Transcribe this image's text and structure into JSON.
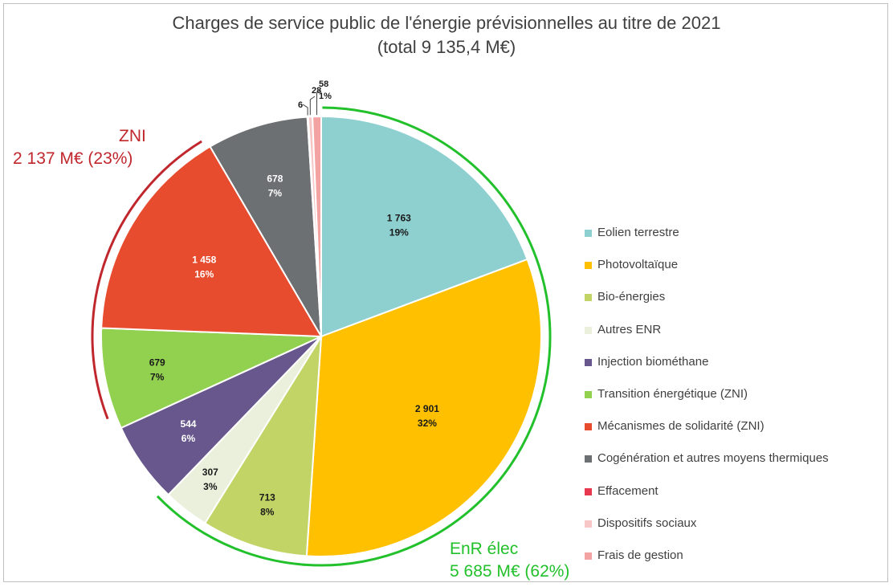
{
  "chart_data": {
    "type": "pie",
    "title": "Charges de service public de l'énergie prévisionnelles au titre de 2021",
    "subtitle": "(total 9 135,4 M€)",
    "slices": [
      {
        "label": "Eolien terrestre",
        "value": 1763,
        "value_label": "1 763",
        "pct_label": "19%",
        "color": "#8ecfd0"
      },
      {
        "label": "Photovoltaïque",
        "value": 2901,
        "value_label": "2 901",
        "pct_label": "32%",
        "color": "#ffc000"
      },
      {
        "label": "Bio-énergies",
        "value": 713,
        "value_label": "713",
        "pct_label": "8%",
        "color": "#c2d466"
      },
      {
        "label": "Autres ENR",
        "value": 307,
        "value_label": "307",
        "pct_label": "3%",
        "color": "#eaf0dc"
      },
      {
        "label": "Injection biométhane",
        "value": 544,
        "value_label": "544",
        "pct_label": "6%",
        "color": "#67578d"
      },
      {
        "label": "Transition énergétique (ZNI)",
        "value": 679,
        "value_label": "679",
        "pct_label": "7%",
        "color": "#92d050"
      },
      {
        "label": "Mécanismes de solidarité (ZNI)",
        "value": 1458,
        "value_label": "1 458",
        "pct_label": "16%",
        "color": "#e84c2e"
      },
      {
        "label": "Cogénération et autres moyens thermiques",
        "value": 678,
        "value_label": "678",
        "pct_label": "7%",
        "color": "#6d7073"
      },
      {
        "label": "Effacement",
        "value": 6,
        "value_label": "",
        "pct_label": "",
        "color": "#e8384f"
      },
      {
        "label": "Dispositifs sociaux",
        "value": 28,
        "value_label": "",
        "pct_label": "",
        "color": "#f7c6c6"
      },
      {
        "label": "Frais de gestion",
        "value": 58,
        "value_label": "",
        "pct_label": "",
        "color": "#f4a3a3"
      }
    ],
    "outside_labels": {
      "effacement": "6",
      "dispositifs": "28",
      "frais": "58",
      "frais_pct": "1%"
    },
    "groups": {
      "zni": {
        "name": "ZNI",
        "total": "2 137 M€ (23%)",
        "color": "#c0272d"
      },
      "enr": {
        "name": "EnR  élec",
        "total": "5 685 M€ (62%)",
        "color": "#22c02b"
      }
    },
    "legend_position": "right"
  }
}
